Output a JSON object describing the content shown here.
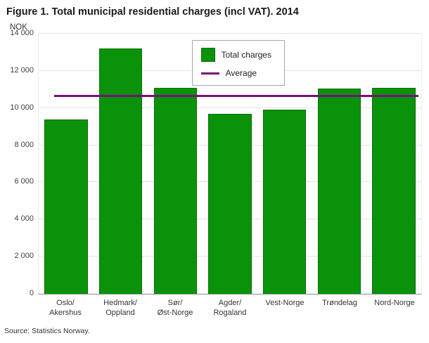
{
  "chart": {
    "title": "Figure 1. Total municipal residential charges (incl VAT). 2014",
    "unit": "NOK",
    "source": "Source: Statistics Norway.",
    "legend": {
      "series": "Total charges",
      "average": "Average"
    }
  },
  "chart_data": {
    "type": "bar",
    "title": "Figure 1. Total municipal residential charges (incl VAT). 2014",
    "categories": [
      "Oslo/\nAkershus",
      "Hedmark/\nOppland",
      "Sør/\nØst-Norge",
      "Agder/\nRogaland",
      "Vest-Norge",
      "Trøndelag",
      "Nord-Norge"
    ],
    "values": [
      9400,
      13200,
      11100,
      9700,
      9900,
      11050,
      11100
    ],
    "average": 10600,
    "xlabel": "",
    "ylabel": "NOK",
    "ylim": [
      0,
      14000
    ],
    "ytick_step": 2000,
    "yticks": [
      "0",
      "2 000",
      "4 000",
      "6 000",
      "8 000",
      "10 000",
      "12 000",
      "14 000"
    ],
    "grid": true,
    "legend": [
      "Total charges",
      "Average"
    ],
    "legend_position": "top-center",
    "bar_color": "#0a930a",
    "average_color": "#7a0e7a",
    "source": "Source: Statistics Norway."
  }
}
